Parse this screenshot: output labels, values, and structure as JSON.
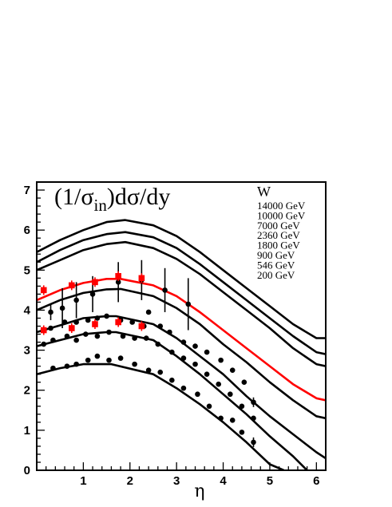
{
  "chart_data": {
    "type": "line",
    "title_main": "(1/σ",
    "title_sub": "in",
    "title_rest": ")dσ/dy",
    "xlabel": "η",
    "ylabel": "",
    "xlim": [
      0,
      6.2
    ],
    "ylim": [
      0,
      7.2
    ],
    "x_ticks": [
      1,
      2,
      3,
      4,
      5,
      6
    ],
    "y_ticks": [
      0,
      1,
      2,
      3,
      4,
      5,
      6,
      7
    ],
    "grid": false,
    "legend_title": "W",
    "legend_placement": "top-right",
    "series": [
      {
        "name": "14000 GeV",
        "color": "#000000",
        "x": [
          0,
          0.5,
          1,
          1.5,
          1.9,
          2.5,
          3,
          3.5,
          4,
          4.5,
          5,
          5.5,
          6,
          6.2
        ],
        "y": [
          5.45,
          5.75,
          6.0,
          6.2,
          6.25,
          6.12,
          5.85,
          5.45,
          5.0,
          4.55,
          4.1,
          3.65,
          3.3,
          3.3
        ]
      },
      {
        "name": "10000 GeV",
        "color": "#000000",
        "x": [
          0,
          0.5,
          1,
          1.5,
          1.9,
          2.5,
          3,
          3.5,
          4,
          4.5,
          5,
          5.5,
          6,
          6.2
        ],
        "y": [
          5.2,
          5.5,
          5.75,
          5.9,
          5.95,
          5.82,
          5.55,
          5.15,
          4.7,
          4.25,
          3.8,
          3.35,
          2.95,
          2.9
        ]
      },
      {
        "name": "7000 GeV",
        "color": "#000000",
        "x": [
          0,
          0.5,
          1,
          1.5,
          1.9,
          2.5,
          3,
          3.5,
          4,
          4.5,
          5,
          5.5,
          6,
          6.2
        ],
        "y": [
          5.0,
          5.25,
          5.5,
          5.65,
          5.7,
          5.55,
          5.28,
          4.9,
          4.45,
          4.0,
          3.55,
          3.05,
          2.65,
          2.6
        ]
      },
      {
        "name": "2360 GeV",
        "color": "#ff0000",
        "x": [
          0,
          0.5,
          1,
          1.5,
          1.8,
          2.5,
          3,
          3.5,
          4,
          4.5,
          5,
          5.5,
          6,
          6.2
        ],
        "y": [
          4.25,
          4.5,
          4.68,
          4.78,
          4.78,
          4.62,
          4.35,
          3.95,
          3.5,
          3.05,
          2.6,
          2.15,
          1.8,
          1.75
        ]
      },
      {
        "name": "1800 GeV",
        "color": "#000000",
        "x": [
          0,
          0.5,
          1,
          1.5,
          1.8,
          2.5,
          3,
          3.5,
          4,
          4.5,
          5,
          5.5,
          6,
          6.2
        ],
        "y": [
          4.0,
          4.25,
          4.43,
          4.52,
          4.53,
          4.35,
          4.05,
          3.65,
          3.15,
          2.7,
          2.2,
          1.75,
          1.35,
          1.3
        ]
      },
      {
        "name": "900 GeV",
        "color": "#000000",
        "x": [
          0,
          0.5,
          1,
          1.5,
          1.7,
          2.5,
          3,
          3.5,
          4,
          4.5,
          5,
          5.5,
          6,
          6.2
        ],
        "y": [
          3.45,
          3.62,
          3.8,
          3.85,
          3.85,
          3.65,
          3.3,
          2.85,
          2.4,
          1.85,
          1.35,
          0.9,
          0.45,
          0.3
        ]
      },
      {
        "name": "546 GeV",
        "color": "#000000",
        "x": [
          0,
          0.5,
          1,
          1.5,
          1.7,
          2.5,
          3,
          3.5,
          4,
          4.5,
          5,
          5.5,
          5.8
        ],
        "y": [
          3.1,
          3.25,
          3.4,
          3.45,
          3.45,
          3.25,
          2.85,
          2.4,
          1.9,
          1.4,
          0.85,
          0.35,
          0.0
        ]
      },
      {
        "name": "200 GeV",
        "color": "#000000",
        "x": [
          0,
          0.5,
          1,
          1.5,
          1.6,
          2.5,
          3,
          3.5,
          4,
          4.5,
          5,
          5.3
        ],
        "y": [
          2.4,
          2.55,
          2.65,
          2.65,
          2.65,
          2.4,
          2.05,
          1.65,
          1.2,
          0.7,
          0.15,
          0.0
        ]
      }
    ],
    "points_black": [
      {
        "x": 0.15,
        "y": 3.5,
        "err": 0.08
      },
      {
        "x": 0.3,
        "y": 3.95,
        "err": 0.2
      },
      {
        "x": 0.55,
        "y": 4.05,
        "err": 0.5
      },
      {
        "x": 0.85,
        "y": 4.25,
        "err": 0.45
      },
      {
        "x": 1.2,
        "y": 4.4,
        "err": 0.45
      },
      {
        "x": 1.75,
        "y": 4.7,
        "err": 0.5
      },
      {
        "x": 2.25,
        "y": 4.75,
        "err": 0.5
      },
      {
        "x": 2.75,
        "y": 4.5,
        "err": 0.55
      },
      {
        "x": 3.25,
        "y": 4.15,
        "err": 0.65
      },
      {
        "x": 0.3,
        "y": 3.55
      },
      {
        "x": 0.6,
        "y": 3.7
      },
      {
        "x": 0.85,
        "y": 3.7
      },
      {
        "x": 1.1,
        "y": 3.75
      },
      {
        "x": 1.3,
        "y": 3.8
      },
      {
        "x": 1.5,
        "y": 3.85
      },
      {
        "x": 1.8,
        "y": 3.75
      },
      {
        "x": 2.05,
        "y": 3.7
      },
      {
        "x": 2.3,
        "y": 3.6
      },
      {
        "x": 2.4,
        "y": 3.95
      },
      {
        "x": 2.65,
        "y": 3.6
      },
      {
        "x": 2.85,
        "y": 3.45
      },
      {
        "x": 3.15,
        "y": 3.2
      },
      {
        "x": 3.4,
        "y": 3.1
      },
      {
        "x": 3.65,
        "y": 2.95
      },
      {
        "x": 3.95,
        "y": 2.75
      },
      {
        "x": 4.2,
        "y": 2.5
      },
      {
        "x": 4.45,
        "y": 2.2
      },
      {
        "x": 4.65,
        "y": 1.7,
        "err": 0.12
      },
      {
        "x": 0.15,
        "y": 3.15
      },
      {
        "x": 0.35,
        "y": 3.25
      },
      {
        "x": 0.65,
        "y": 3.35
      },
      {
        "x": 0.85,
        "y": 3.25
      },
      {
        "x": 1.05,
        "y": 3.4
      },
      {
        "x": 1.3,
        "y": 3.35
      },
      {
        "x": 1.55,
        "y": 3.45
      },
      {
        "x": 1.85,
        "y": 3.35
      },
      {
        "x": 2.1,
        "y": 3.3
      },
      {
        "x": 2.35,
        "y": 3.3
      },
      {
        "x": 2.6,
        "y": 3.15
      },
      {
        "x": 2.9,
        "y": 2.95
      },
      {
        "x": 3.15,
        "y": 2.8
      },
      {
        "x": 3.4,
        "y": 2.65
      },
      {
        "x": 3.65,
        "y": 2.4
      },
      {
        "x": 3.9,
        "y": 2.15
      },
      {
        "x": 4.15,
        "y": 1.9
      },
      {
        "x": 4.4,
        "y": 1.6
      },
      {
        "x": 4.65,
        "y": 1.3
      },
      {
        "x": 0.35,
        "y": 2.55
      },
      {
        "x": 0.65,
        "y": 2.6
      },
      {
        "x": 0.85,
        "y": 2.65
      },
      {
        "x": 1.1,
        "y": 2.75
      },
      {
        "x": 1.3,
        "y": 2.85
      },
      {
        "x": 1.55,
        "y": 2.75
      },
      {
        "x": 1.8,
        "y": 2.8
      },
      {
        "x": 2.1,
        "y": 2.65
      },
      {
        "x": 2.4,
        "y": 2.5
      },
      {
        "x": 2.65,
        "y": 2.45
      },
      {
        "x": 2.9,
        "y": 2.25
      },
      {
        "x": 3.15,
        "y": 2.05
      },
      {
        "x": 3.45,
        "y": 1.9
      },
      {
        "x": 3.7,
        "y": 1.6
      },
      {
        "x": 3.95,
        "y": 1.3
      },
      {
        "x": 4.2,
        "y": 1.25
      },
      {
        "x": 4.4,
        "y": 0.95
      },
      {
        "x": 4.65,
        "y": 0.7,
        "err": 0.12
      }
    ],
    "points_red": [
      {
        "x": 0.15,
        "y": 4.5,
        "err": 0.12
      },
      {
        "x": 0.75,
        "y": 4.62,
        "err": 0.12
      },
      {
        "x": 1.25,
        "y": 4.7,
        "err": 0.12
      },
      {
        "x": 1.75,
        "y": 4.85,
        "err": 0.12
      },
      {
        "x": 2.25,
        "y": 4.8,
        "err": 0.12
      },
      {
        "x": 0.15,
        "y": 3.5,
        "err": 0.12
      },
      {
        "x": 0.75,
        "y": 3.55,
        "err": 0.12
      },
      {
        "x": 1.25,
        "y": 3.65,
        "err": 0.12
      },
      {
        "x": 1.75,
        "y": 3.7,
        "err": 0.12
      },
      {
        "x": 2.25,
        "y": 3.6,
        "err": 0.12
      }
    ]
  }
}
